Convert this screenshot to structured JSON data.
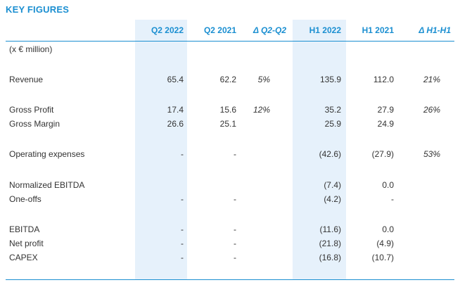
{
  "title": "KEY FIGURES",
  "columns": [
    "Q2 2022",
    "Q2 2021",
    "Δ Q2-Q2",
    "H1 2022",
    "H1 2021",
    "Δ H1-H1"
  ],
  "unit_label": "(x € million)",
  "accent_color": "#1b8fd1",
  "highlight_color": "#e6f1fb",
  "rows": [
    {
      "label": "Revenue",
      "values": [
        "65.4",
        "62.2",
        "5%",
        "135.9",
        "112.0",
        "21%"
      ]
    },
    {
      "label": "Gross Profit",
      "values": [
        "17.4",
        "15.6",
        "12%",
        "35.2",
        "27.9",
        "26%"
      ]
    },
    {
      "label": "Gross Margin",
      "values": [
        "26.6",
        "25.1",
        "",
        "25.9",
        "24.9",
        ""
      ]
    },
    {
      "label": "Operating expenses",
      "values": [
        "-",
        "-",
        "",
        "(42.6)",
        "(27.9)",
        "53%"
      ]
    },
    {
      "label": "Normalized EBITDA",
      "values": [
        "",
        "",
        "",
        "(7.4)",
        "0.0",
        ""
      ]
    },
    {
      "label": "One-offs",
      "values": [
        "-",
        "-",
        "",
        "(4.2)",
        "-",
        ""
      ]
    },
    {
      "label": "EBITDA",
      "values": [
        "-",
        "-",
        "",
        "(11.6)",
        "0.0",
        ""
      ]
    },
    {
      "label": "Net profit",
      "values": [
        "-",
        "-",
        "",
        "(21.8)",
        "(4.9)",
        ""
      ]
    },
    {
      "label": "CAPEX",
      "values": [
        "-",
        "-",
        "",
        "(16.8)",
        "(10.7)",
        ""
      ]
    }
  ]
}
